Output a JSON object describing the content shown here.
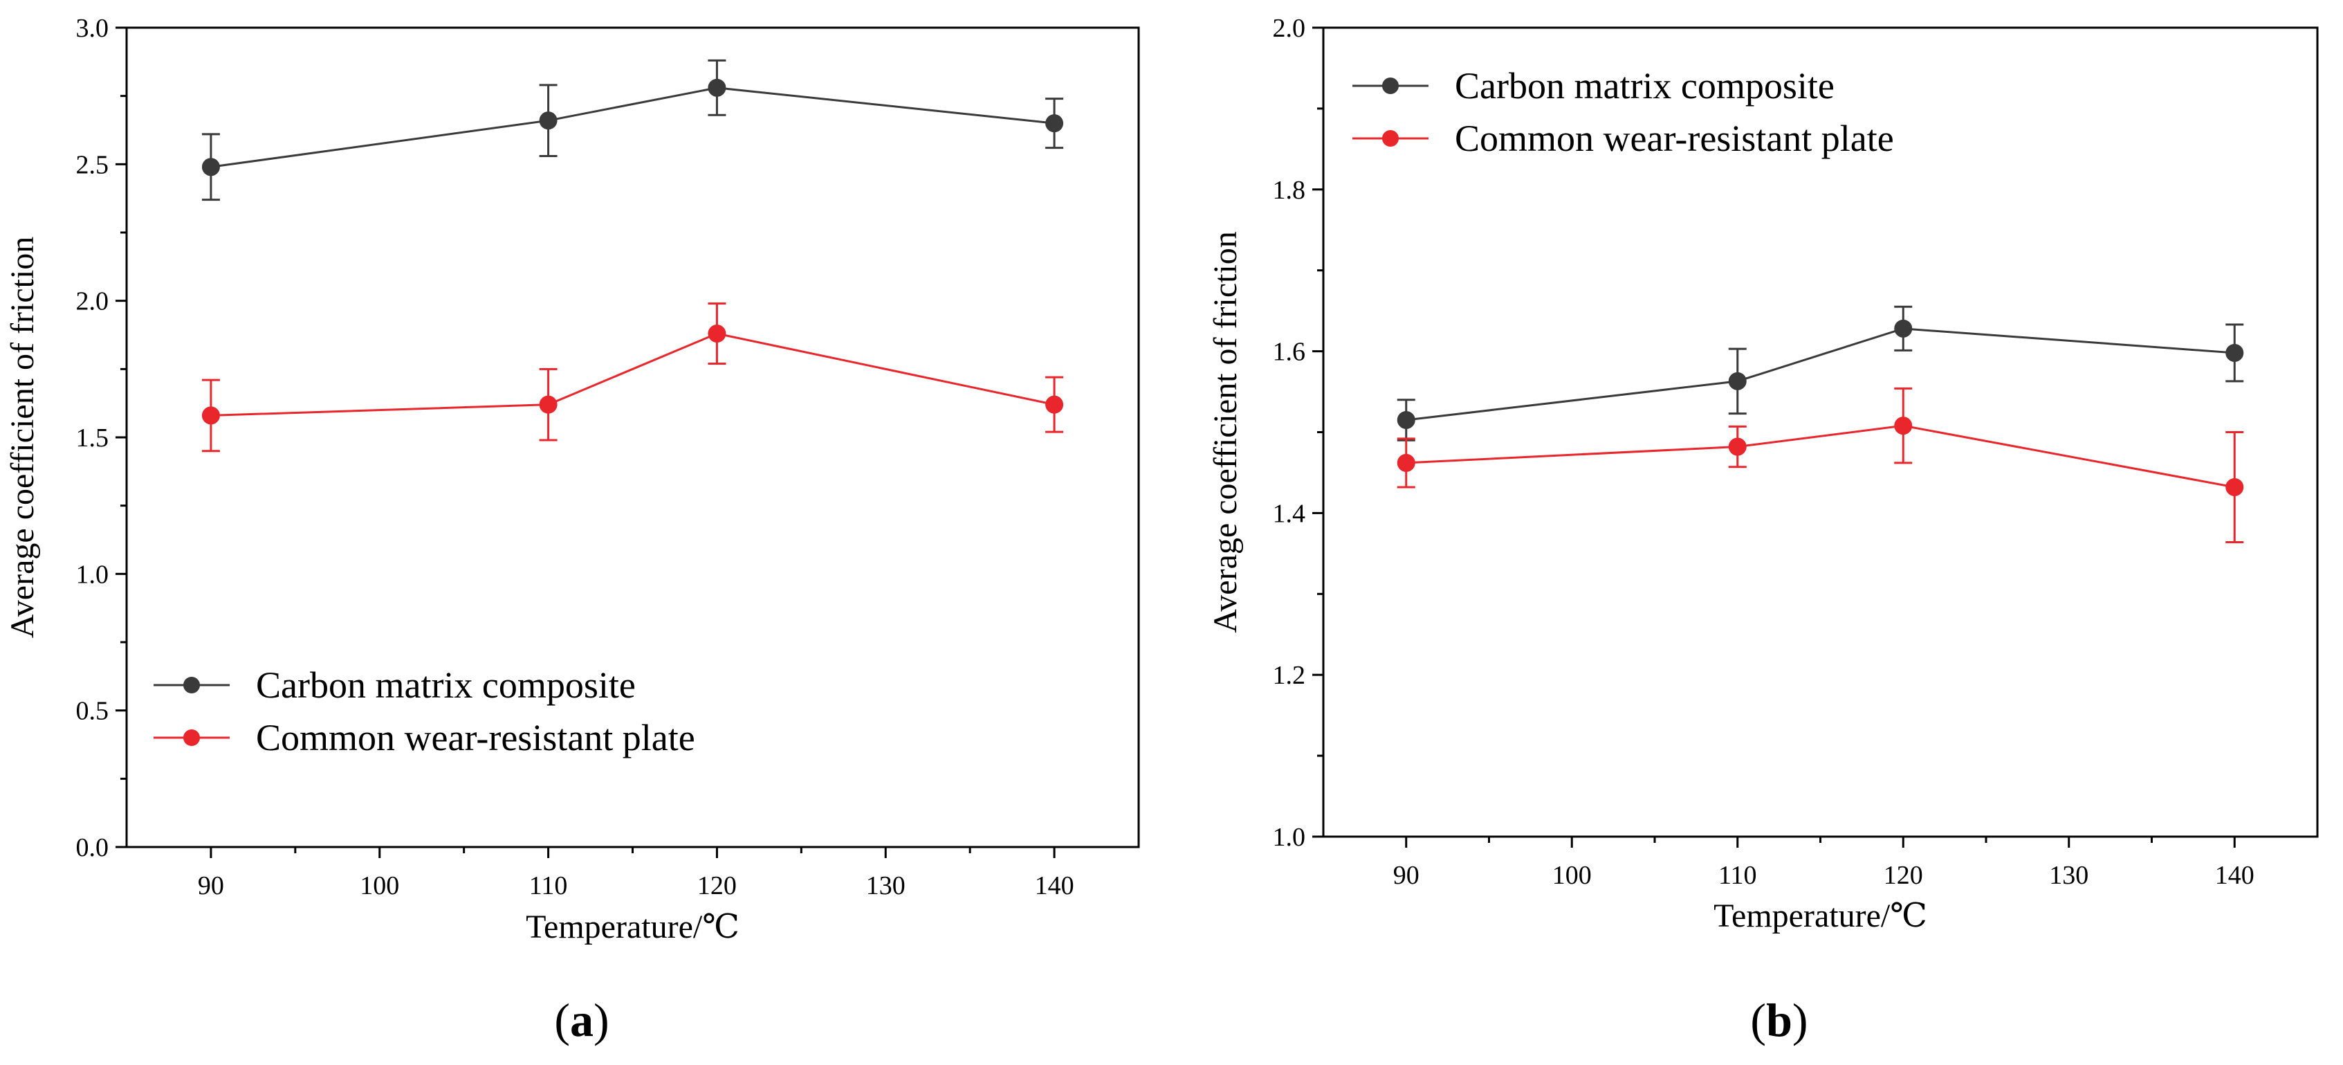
{
  "figure": {
    "panels": [
      {
        "label_open": "(",
        "label_letter": "a",
        "label_close": ")"
      },
      {
        "label_open": "(",
        "label_letter": "b",
        "label_close": ")"
      }
    ]
  },
  "colors": {
    "carbon": "#3a3a3a",
    "common": "#e8262b",
    "axis": "#000000"
  },
  "chart_data": [
    {
      "type": "line",
      "panel": "a",
      "title": "",
      "xlabel": "Temperature/℃",
      "ylabel": "Average coefficient of friction",
      "xlim": [
        85,
        145
      ],
      "ylim": [
        0.0,
        3.0
      ],
      "xticks": [
        90,
        100,
        110,
        120,
        130,
        140
      ],
      "yticks": [
        0.0,
        0.5,
        1.0,
        1.5,
        2.0,
        2.5,
        3.0
      ],
      "ytick_labels": [
        "0.0",
        "0.5",
        "1.0",
        "1.5",
        "2.0",
        "2.5",
        "3.0"
      ],
      "legend_position": "bottom-left",
      "x": [
        90,
        110,
        120,
        140
      ],
      "series": [
        {
          "name": "Carbon matrix composite",
          "key": "carbon",
          "values": [
            2.49,
            2.66,
            2.78,
            2.65
          ],
          "errors": [
            0.12,
            0.13,
            0.1,
            0.09
          ]
        },
        {
          "name": "Common wear-resistant plate",
          "key": "common",
          "values": [
            1.58,
            1.62,
            1.88,
            1.62
          ],
          "errors": [
            0.13,
            0.13,
            0.11,
            0.1
          ]
        }
      ]
    },
    {
      "type": "line",
      "panel": "b",
      "title": "",
      "xlabel": "Temperature/℃",
      "ylabel": "Average coefficient of friction",
      "xlim": [
        85,
        145
      ],
      "ylim": [
        1.0,
        2.0
      ],
      "xticks": [
        90,
        100,
        110,
        120,
        130,
        140
      ],
      "yticks": [
        1.0,
        1.2,
        1.4,
        1.6,
        1.8,
        2.0
      ],
      "ytick_labels": [
        "1.0",
        "1.2",
        "1.4",
        "1.6",
        "1.8",
        "2.0"
      ],
      "legend_position": "top-left",
      "x": [
        90,
        110,
        120,
        140
      ],
      "series": [
        {
          "name": "Carbon matrix composite",
          "key": "carbon",
          "values": [
            1.515,
            1.563,
            1.628,
            1.598
          ],
          "errors": [
            0.025,
            0.04,
            0.027,
            0.035
          ]
        },
        {
          "name": "Common wear-resistant plate",
          "key": "common",
          "values": [
            1.462,
            1.482,
            1.508,
            1.432
          ],
          "errors": [
            0.03,
            0.025,
            0.046,
            0.068
          ]
        }
      ]
    }
  ]
}
